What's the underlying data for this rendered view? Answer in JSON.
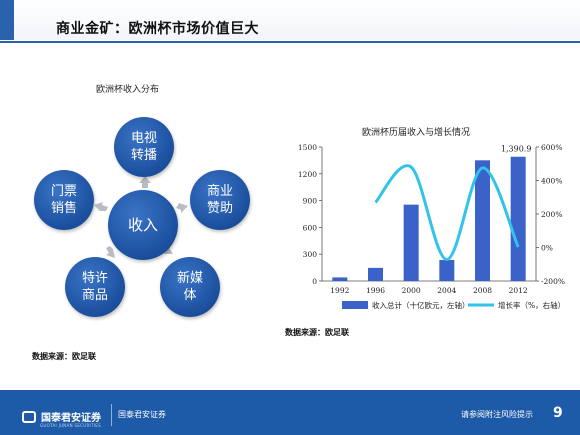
{
  "header": {
    "title": "商业金矿：欧洲杯市场价值巨大"
  },
  "cycle": {
    "title": "欧洲杯收入分布",
    "center": "收入",
    "nodes": [
      {
        "label_l1": "电视",
        "label_l2": "转播"
      },
      {
        "label_l1": "商业",
        "label_l2": "赞助"
      },
      {
        "label_l1": "新媒",
        "label_l2": "体"
      },
      {
        "label_l1": "特许",
        "label_l2": "商品"
      },
      {
        "label_l1": "门票",
        "label_l2": "销售"
      }
    ],
    "source": "数据来源：欧足联"
  },
  "chart_data": {
    "type": "bar",
    "title": "欧洲杯历届收入与增长情况",
    "categories": [
      "1992",
      "1996",
      "2000",
      "2004",
      "2008",
      "2012"
    ],
    "series": [
      {
        "name": "收入总计（十亿欧元，左轴）",
        "type": "bar",
        "axis": "left",
        "color": "#3a62c9",
        "values": [
          40,
          147,
          855,
          235,
          1351,
          1390.9
        ]
      },
      {
        "name": "增长率（%，右轴）",
        "type": "line",
        "axis": "right",
        "color": "#33c2ea",
        "values": [
          null,
          270,
          480,
          -72,
          475,
          3
        ]
      }
    ],
    "yleft": {
      "min": 0,
      "max": 1500,
      "ticks": [
        "0",
        "300",
        "600",
        "900",
        "1200",
        "1500"
      ]
    },
    "yright": {
      "min": -200,
      "max": 600,
      "ticks": [
        "-200%",
        "0%",
        "200%",
        "400%",
        "600%"
      ]
    },
    "data_label": "1,390.9",
    "grid": false,
    "legend": "bottom",
    "source": "数据来源：欧足联"
  },
  "footer": {
    "logo_text": "国泰君安证券",
    "logo_sub": "GUOTAI JUNAN SECURITIES",
    "brand2": "国泰君安证券",
    "risk": "请参阅附注风险提示",
    "page": "9"
  }
}
